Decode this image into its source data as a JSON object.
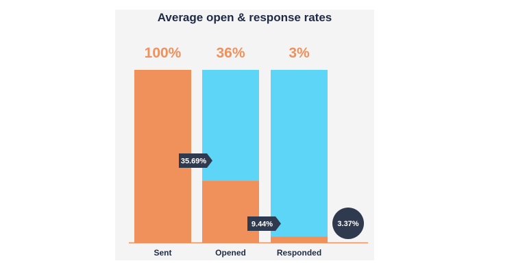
{
  "chart_data": {
    "type": "bar",
    "title": "Average open & response rates",
    "categories": [
      "Sent",
      "Opened",
      "Responded"
    ],
    "top_labels": [
      "100%",
      "36%",
      "3%"
    ],
    "series": [
      {
        "values": [
          100,
          35.69,
          3.37
        ]
      }
    ],
    "conversion_labels": [
      "35.69%",
      "9.44%"
    ],
    "overall_label": "3.37%",
    "ylim": [
      0,
      100
    ],
    "grid": false,
    "colors": {
      "orange": "#f0905a",
      "blue": "#5dd5f6",
      "dark": "#2f3a4f",
      "title": "#1f2a44",
      "panel": "#f4f4f4"
    }
  }
}
